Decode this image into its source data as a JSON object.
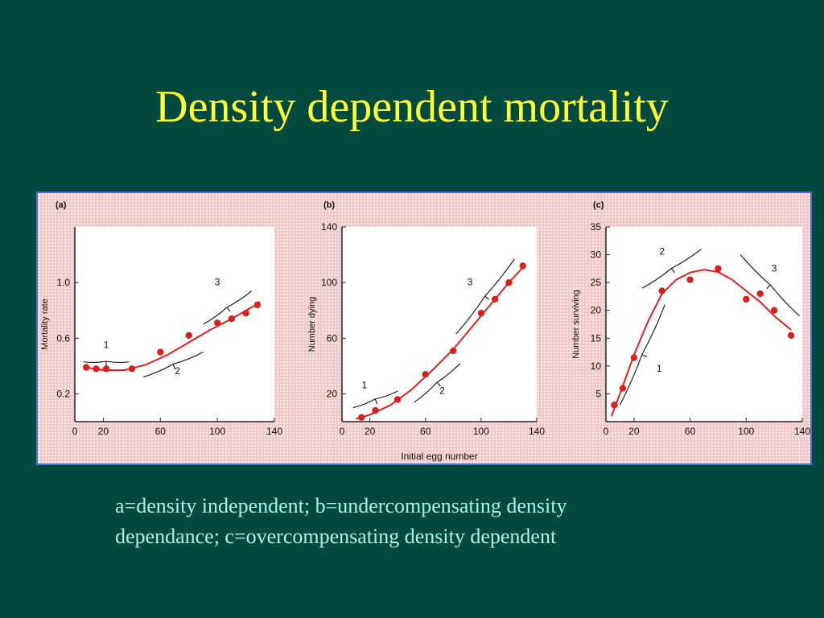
{
  "slide": {
    "title": "Density dependent mortality",
    "caption_line1": "a=density independent;  b=undercompensating density",
    "caption_line2": "dependance; c=overcompensating density dependent"
  },
  "colors": {
    "background": "#024a40",
    "title": "#ffff33",
    "caption": "#a8f4e6",
    "curve": "#e02020",
    "points": "#d8201c",
    "frame_border": "#4f6fd8"
  },
  "shared_xlabel": "Initial egg number",
  "chart_data": [
    {
      "type": "scatter",
      "panel_label": "(a)",
      "ylabel": "Mortality rate",
      "xlim": [
        0,
        140
      ],
      "ylim": [
        0,
        1.4
      ],
      "xticks": [
        0,
        20,
        60,
        100,
        140
      ],
      "yticks": [
        0.2,
        0.6,
        1.0
      ],
      "ytick_labels": [
        "0.2",
        "0.6",
        "1.0"
      ],
      "points": [
        [
          8,
          0.39
        ],
        [
          15,
          0.38
        ],
        [
          22,
          0.38
        ],
        [
          40,
          0.38
        ],
        [
          60,
          0.5
        ],
        [
          80,
          0.62
        ],
        [
          100,
          0.71
        ],
        [
          110,
          0.74
        ],
        [
          120,
          0.78
        ],
        [
          128,
          0.84
        ]
      ],
      "curve": [
        [
          8,
          0.39
        ],
        [
          20,
          0.37
        ],
        [
          35,
          0.37
        ],
        [
          50,
          0.41
        ],
        [
          65,
          0.48
        ],
        [
          80,
          0.57
        ],
        [
          95,
          0.66
        ],
        [
          110,
          0.74
        ],
        [
          122,
          0.81
        ],
        [
          130,
          0.86
        ]
      ],
      "annotations": [
        {
          "label": "1",
          "from": [
            6,
            0.43
          ],
          "to": [
            38,
            0.43
          ],
          "text_at": [
            22,
            0.53
          ]
        },
        {
          "label": "2",
          "from": [
            48,
            0.32
          ],
          "to": [
            90,
            0.5
          ],
          "text_at": [
            72,
            0.34
          ]
        },
        {
          "label": "3",
          "from": [
            90,
            0.7
          ],
          "to": [
            124,
            0.94
          ],
          "text_at": [
            100,
            0.98
          ]
        }
      ]
    },
    {
      "type": "scatter",
      "panel_label": "(b)",
      "ylabel": "Number dying",
      "xlim": [
        0,
        140
      ],
      "ylim": [
        0,
        140
      ],
      "xticks": [
        0,
        20,
        60,
        100,
        140
      ],
      "yticks": [
        20,
        60,
        100,
        140
      ],
      "ytick_labels": [
        "20",
        "60",
        "100",
        "140"
      ],
      "points": [
        [
          14,
          3
        ],
        [
          24,
          8
        ],
        [
          40,
          16
        ],
        [
          60,
          34
        ],
        [
          80,
          51
        ],
        [
          100,
          78
        ],
        [
          110,
          88
        ],
        [
          120,
          100
        ],
        [
          130,
          112
        ]
      ],
      "curve": [
        [
          10,
          2
        ],
        [
          20,
          5
        ],
        [
          35,
          12
        ],
        [
          50,
          23
        ],
        [
          65,
          37
        ],
        [
          80,
          52
        ],
        [
          95,
          70
        ],
        [
          110,
          88
        ],
        [
          120,
          100
        ],
        [
          132,
          113
        ]
      ],
      "annotations": [
        {
          "label": "1",
          "from": [
            8,
            10
          ],
          "to": [
            40,
            22
          ],
          "text_at": [
            16,
            24
          ]
        },
        {
          "label": "2",
          "from": [
            52,
            14
          ],
          "to": [
            85,
            42
          ],
          "text_at": [
            72,
            20
          ]
        },
        {
          "label": "3",
          "from": [
            82,
            63
          ],
          "to": [
            124,
            117
          ],
          "text_at": [
            92,
            98
          ]
        }
      ]
    },
    {
      "type": "scatter",
      "panel_label": "(c)",
      "ylabel": "Number surviving",
      "xlim": [
        0,
        140
      ],
      "ylim": [
        0,
        35
      ],
      "xticks": [
        0,
        20,
        60,
        100,
        140
      ],
      "yticks": [
        5,
        10,
        15,
        20,
        25,
        30,
        35
      ],
      "ytick_labels": [
        "5",
        "10",
        "15",
        "20",
        "25",
        "30",
        "35"
      ],
      "points": [
        [
          6,
          3
        ],
        [
          12,
          6
        ],
        [
          20,
          11.5
        ],
        [
          40,
          23.5
        ],
        [
          60,
          25.5
        ],
        [
          80,
          27.5
        ],
        [
          100,
          22
        ],
        [
          110,
          23
        ],
        [
          120,
          20
        ],
        [
          132,
          15.5
        ]
      ],
      "curve": [
        [
          4,
          1
        ],
        [
          10,
          5
        ],
        [
          20,
          12
        ],
        [
          30,
          18
        ],
        [
          40,
          23
        ],
        [
          50,
          25.5
        ],
        [
          60,
          26.8
        ],
        [
          70,
          27.3
        ],
        [
          80,
          26.9
        ],
        [
          90,
          25.5
        ],
        [
          100,
          23.5
        ],
        [
          110,
          21.5
        ],
        [
          120,
          19
        ],
        [
          132,
          16.5
        ]
      ],
      "annotations": [
        {
          "label": "1",
          "from": [
            10,
            3
          ],
          "to": [
            42,
            21
          ],
          "text_at": [
            38,
            9
          ]
        },
        {
          "label": "2",
          "from": [
            26,
            24
          ],
          "to": [
            68,
            31
          ],
          "text_at": [
            40,
            30
          ]
        },
        {
          "label": "3",
          "from": [
            96,
            30
          ],
          "to": [
            138,
            19
          ],
          "text_at": [
            120,
            27
          ]
        }
      ]
    }
  ]
}
